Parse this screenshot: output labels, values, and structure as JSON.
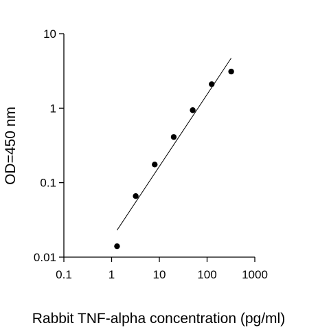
{
  "chart_data": {
    "type": "scatter",
    "title": "",
    "xlabel": "Rabbit TNF-alpha concentration (pg/ml)",
    "ylabel": "OD=450 nm",
    "x_scale": "log",
    "y_scale": "log",
    "xlim": [
      0.1,
      1000
    ],
    "ylim": [
      0.01,
      10
    ],
    "x_ticks": [
      0.1,
      1,
      10,
      100,
      1000
    ],
    "x_tick_labels": [
      "0.1",
      "1",
      "10",
      "100",
      "1000"
    ],
    "y_ticks": [
      0.01,
      0.1,
      1,
      10
    ],
    "y_tick_labels": [
      "0.01",
      "0.1",
      "1",
      "10"
    ],
    "grid": false,
    "legend": "none",
    "colors": {
      "points": "#000000",
      "fit_line": "#000000",
      "axes": "#000000"
    },
    "series": [
      {
        "points": [
          {
            "x": 1.3,
            "y": 0.014
          },
          {
            "x": 3.2,
            "y": 0.066
          },
          {
            "x": 8.0,
            "y": 0.175
          },
          {
            "x": 20.0,
            "y": 0.41
          },
          {
            "x": 50.0,
            "y": 0.94
          },
          {
            "x": 125.0,
            "y": 2.1
          },
          {
            "x": 320.0,
            "y": 3.1
          }
        ]
      }
    ],
    "fit_line": {
      "x": [
        1.3,
        320.0
      ],
      "y": [
        0.023,
        4.7
      ]
    }
  }
}
